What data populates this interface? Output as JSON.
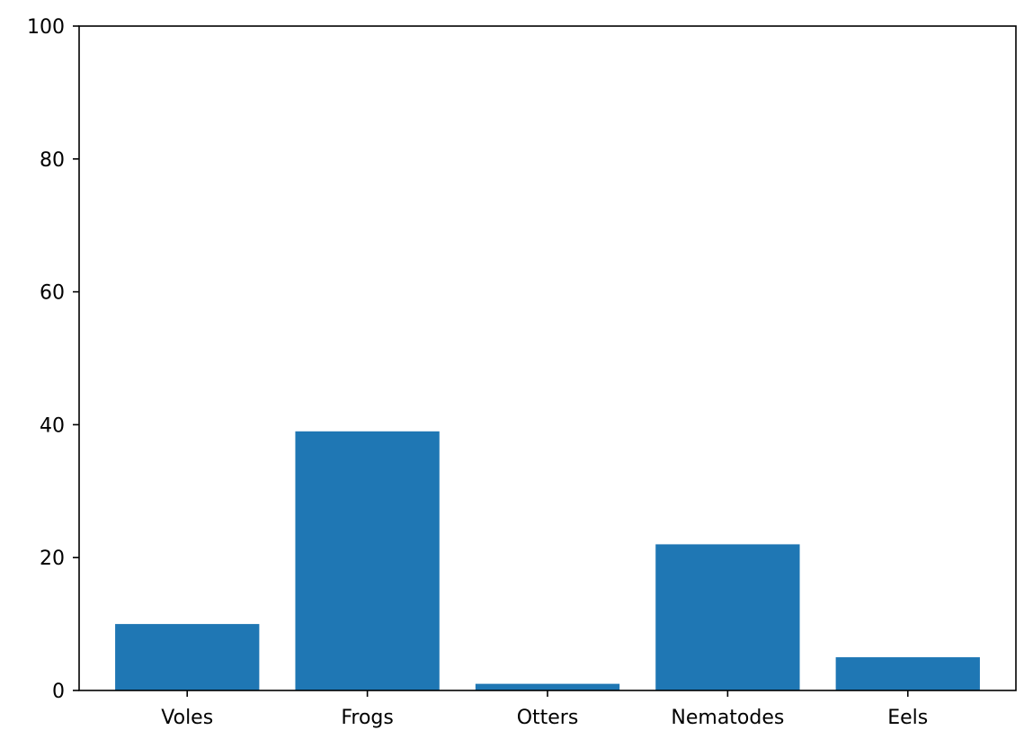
{
  "chart_data": {
    "type": "bar",
    "categories": [
      "Voles",
      "Frogs",
      "Otters",
      "Nematodes",
      "Eels"
    ],
    "values": [
      10,
      39,
      1,
      22,
      5
    ],
    "ylim": [
      0,
      100
    ],
    "yticks": [
      0,
      20,
      40,
      60,
      80,
      100
    ],
    "title": "",
    "xlabel": "",
    "ylabel": "",
    "grid": false,
    "bar_color": "#1f77b4"
  }
}
